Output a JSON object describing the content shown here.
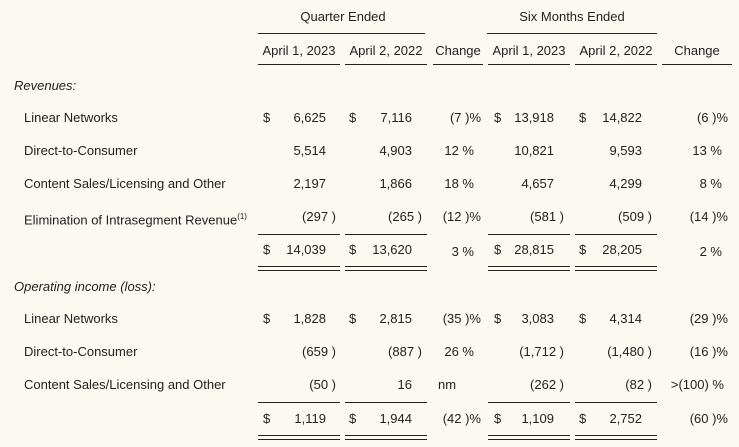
{
  "header": {
    "group1": "Quarter Ended",
    "group2": "Six Months Ended",
    "cols": [
      "April 1, 2023",
      "April 2, 2022",
      "Change",
      "April 1, 2023",
      "April 2, 2022",
      "Change"
    ]
  },
  "revenues": {
    "title": "Revenues:",
    "rows": [
      {
        "label": "Linear Networks",
        "d1": "$",
        "v1": "6,625",
        "d2": "$",
        "v2": "7,116",
        "chg1": "(7 )%",
        "d3": "$",
        "v3": "13,918",
        "d4": "$",
        "v4": "14,822",
        "chg2": "(6 )%"
      },
      {
        "label": "Direct-to-Consumer",
        "d1": "",
        "v1": "5,514",
        "d2": "",
        "v2": "4,903",
        "chg1": "12 %",
        "d3": "",
        "v3": "10,821",
        "d4": "",
        "v4": "9,593",
        "chg2": "13 %"
      },
      {
        "label": "Content Sales/Licensing and Other",
        "d1": "",
        "v1": "2,197",
        "d2": "",
        "v2": "1,866",
        "chg1": "18 %",
        "d3": "",
        "v3": "4,657",
        "d4": "",
        "v4": "4,299",
        "chg2": "8 %"
      },
      {
        "label": "Elimination of Intrasegment Revenue",
        "note": "(1)",
        "d1": "",
        "v1": "(297 )",
        "d2": "",
        "v2": "(265 )",
        "chg1": "(12 )%",
        "d3": "",
        "v3": "(581 )",
        "d4": "",
        "v4": "(509 )",
        "chg2": "(14 )%"
      }
    ],
    "total": {
      "d1": "$",
      "v1": "14,039",
      "d2": "$",
      "v2": "13,620",
      "chg1": "3 %",
      "d3": "$",
      "v3": "28,815",
      "d4": "$",
      "v4": "28,205",
      "chg2": "2 %"
    }
  },
  "operating": {
    "title": "Operating income (loss):",
    "rows": [
      {
        "label": "Linear Networks",
        "d1": "$",
        "v1": "1,828",
        "d2": "$",
        "v2": "2,815",
        "chg1": "(35 )%",
        "d3": "$",
        "v3": "3,083",
        "d4": "$",
        "v4": "4,314",
        "chg2": "(29 )%"
      },
      {
        "label": "Direct-to-Consumer",
        "d1": "",
        "v1": "(659 )",
        "d2": "",
        "v2": "(887 )",
        "chg1": "26 %",
        "d3": "",
        "v3": "(1,712 )",
        "d4": "",
        "v4": "(1,480 )",
        "chg2": "(16 )%"
      },
      {
        "label": "Content Sales/Licensing and Other",
        "d1": "",
        "v1": "(50 )",
        "d2": "",
        "v2": "16",
        "chg1": "nm",
        "d3": "",
        "v3": "(262 )",
        "d4": "",
        "v4": "(82 )",
        "chg2": ">(100) %"
      }
    ],
    "total": {
      "d1": "$",
      "v1": "1,119",
      "d2": "$",
      "v2": "1,944",
      "chg1": "(42 )%",
      "d3": "$",
      "v3": "1,109",
      "d4": "$",
      "v4": "2,752",
      "chg2": "(60 )%"
    }
  }
}
